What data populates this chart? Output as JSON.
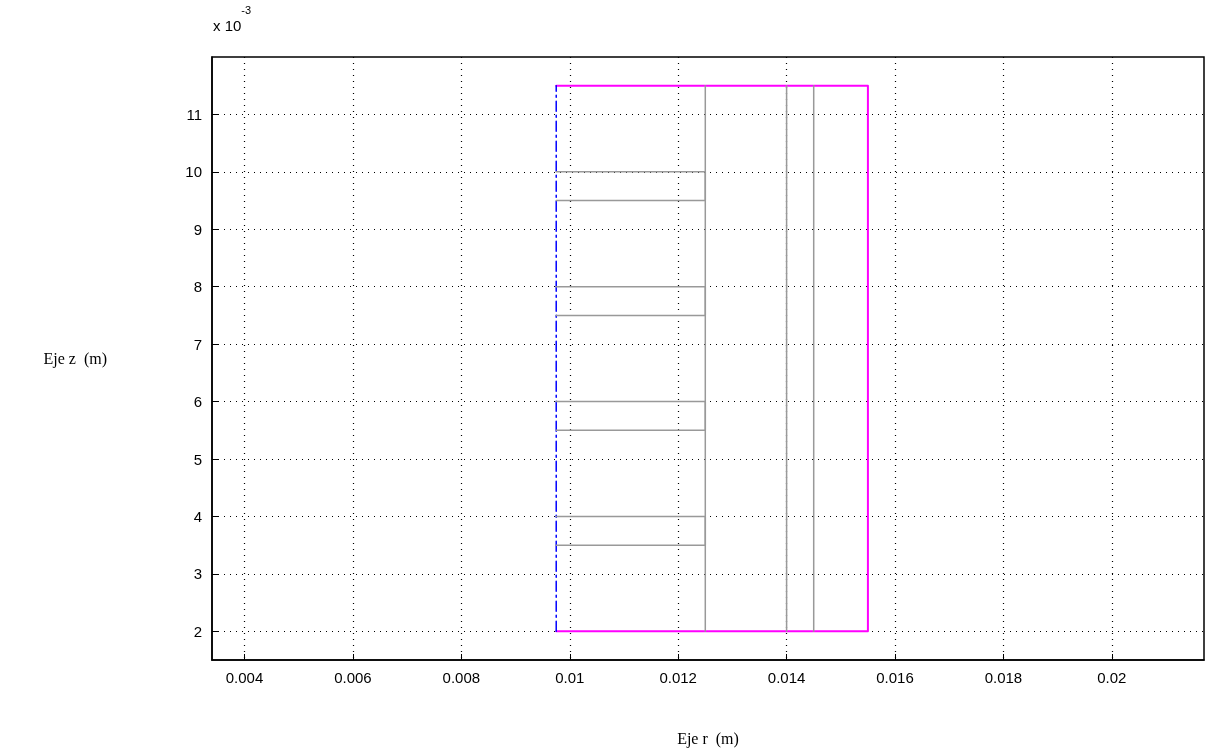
{
  "chart_data": {
    "type": "line",
    "xlabel": "Eje r  (m)",
    "ylabel": "Eje z  (m)",
    "annotations": [
      "x 10$^{-3}$"
    ],
    "xlim": [
      0.0034,
      0.0217
    ],
    "xticks": [
      0.004,
      0.006,
      0.008,
      0.01,
      0.012,
      0.014,
      0.016,
      0.018,
      0.02
    ],
    "ylim": [
      1.5,
      12
    ],
    "yticks": [
      2,
      3,
      4,
      5,
      6,
      7,
      8,
      9,
      10,
      11
    ],
    "grid": true,
    "marker": "none",
    "series": [
      {
        "color": "#ff00ff",
        "line_style": "solid",
        "x": [
          0.00975,
          0.0155,
          0.0155,
          0.00975
        ],
        "values": [
          2,
          2,
          11.5,
          11.5
        ]
      },
      {
        "color": "#0000ff",
        "line_style": "dashed",
        "x": [
          0.00975,
          0.00975
        ],
        "values": [
          2,
          11.5
        ]
      },
      {
        "color": "#999999",
        "line_style": "solid",
        "x": [
          0.0125,
          0.0125
        ],
        "values": [
          2,
          11.5
        ]
      },
      {
        "color": "#999999",
        "line_style": "solid",
        "x": [
          0.014,
          0.014
        ],
        "values": [
          2,
          11.5
        ]
      },
      {
        "color": "#999999",
        "line_style": "solid",
        "x": [
          0.0145,
          0.0145
        ],
        "values": [
          2,
          11.5
        ]
      },
      {
        "color": "#999999",
        "line_style": "solid",
        "x": [
          0.00975,
          0.0125,
          0.0125,
          0.00975
        ],
        "values": [
          10,
          10,
          9.5,
          9.5
        ]
      },
      {
        "color": "#999999",
        "line_style": "solid",
        "x": [
          0.00975,
          0.0125,
          0.0125,
          0.00975
        ],
        "values": [
          8,
          8,
          7.5,
          7.5
        ]
      },
      {
        "color": "#999999",
        "line_style": "solid",
        "x": [
          0.00975,
          0.0125,
          0.0125,
          0.00975
        ],
        "values": [
          6,
          6,
          5.5,
          5.5
        ]
      },
      {
        "color": "#999999",
        "line_style": "solid",
        "x": [
          0.00975,
          0.0125,
          0.0125,
          0.00975
        ],
        "values": [
          4,
          4,
          3.5,
          3.5
        ]
      }
    ]
  }
}
